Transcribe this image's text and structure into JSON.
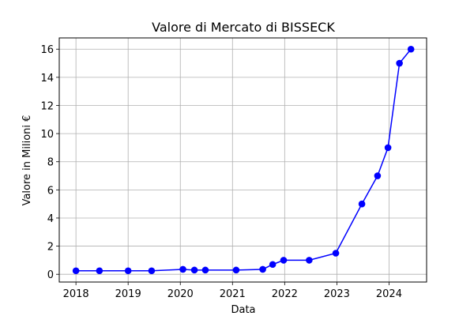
{
  "chart_data": {
    "type": "line",
    "title": "Valore di Mercato di BISSECK",
    "xlabel": "Data",
    "ylabel": "Valore in Milioni €",
    "xlim": [
      2017.68,
      2024.72
    ],
    "ylim": [
      -0.55,
      16.8
    ],
    "grid": true,
    "x_ticks": [
      2018,
      2019,
      2020,
      2021,
      2022,
      2023,
      2024
    ],
    "x_tick_labels": [
      "2018",
      "2019",
      "2020",
      "2021",
      "2022",
      "2023",
      "2024"
    ],
    "y_ticks": [
      0,
      2,
      4,
      6,
      8,
      10,
      12,
      14,
      16
    ],
    "y_tick_labels": [
      "0",
      "2",
      "4",
      "6",
      "8",
      "10",
      "12",
      "14",
      "16"
    ],
    "series": [
      {
        "name": "Valore di Mercato",
        "color": "#0000ff",
        "x": [
          2018.0,
          2018.45,
          2019.0,
          2019.45,
          2020.05,
          2020.27,
          2020.48,
          2021.07,
          2021.58,
          2021.77,
          2021.98,
          2022.47,
          2022.98,
          2023.48,
          2023.78,
          2023.98,
          2024.2,
          2024.42
        ],
        "y": [
          0.25,
          0.25,
          0.25,
          0.25,
          0.35,
          0.3,
          0.3,
          0.3,
          0.35,
          0.7,
          1.0,
          1.0,
          1.5,
          5.0,
          7.0,
          9.0,
          15.0,
          16.0
        ]
      }
    ]
  }
}
